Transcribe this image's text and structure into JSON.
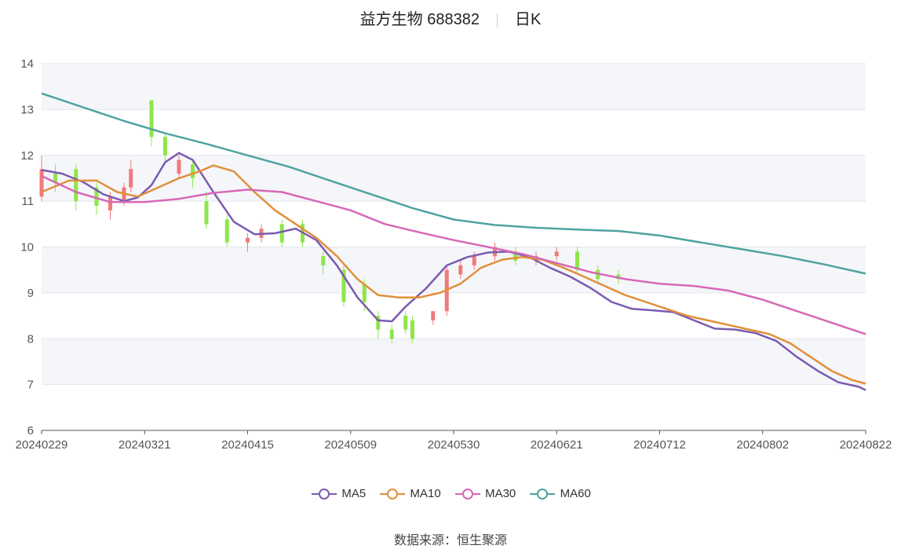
{
  "header": {
    "stock": "益方生物 688382",
    "period": "日K"
  },
  "source": {
    "label": "数据来源：",
    "value": "恒生聚源"
  },
  "colors": {
    "up": "#f07a7a",
    "down": "#8ee64a",
    "ma5": "#7b5bb0",
    "ma10": "#e0903a",
    "ma30": "#d768b8",
    "ma60": "#4fa3a0",
    "band": "#f5f6fa",
    "grid": "#e3e6ee"
  },
  "chart_data": {
    "type": "candlestick",
    "ylim": [
      6,
      14
    ],
    "yticks": [
      6,
      7,
      8,
      9,
      10,
      11,
      12,
      13,
      14
    ],
    "x_tick_labels": [
      "20240229",
      "20240321",
      "20240415",
      "20240509",
      "20240530",
      "20240621",
      "20240712",
      "20240802",
      "20240822"
    ],
    "x_tick_index": [
      0,
      15,
      30,
      45,
      60,
      75,
      90,
      105,
      120
    ],
    "n": 121,
    "candles": [
      [
        0,
        11.1,
        11.7,
        12.0,
        11.0
      ],
      [
        2,
        11.6,
        11.4,
        11.8,
        11.2
      ],
      [
        5,
        11.7,
        11.0,
        11.8,
        10.8
      ],
      [
        8,
        11.3,
        10.9,
        11.4,
        10.7
      ],
      [
        10,
        10.8,
        11.1,
        11.2,
        10.6
      ],
      [
        12,
        11.0,
        11.3,
        11.4,
        10.9
      ],
      [
        13,
        11.3,
        11.7,
        11.9,
        11.2
      ],
      [
        16,
        13.2,
        12.4,
        13.2,
        12.2
      ],
      [
        18,
        12.4,
        12.0,
        12.5,
        11.8
      ],
      [
        20,
        11.6,
        11.9,
        12.0,
        11.5
      ],
      [
        22,
        11.8,
        11.5,
        11.9,
        11.3
      ],
      [
        24,
        11.0,
        10.5,
        11.2,
        10.4
      ],
      [
        27,
        10.6,
        10.1,
        10.7,
        10.0
      ],
      [
        30,
        10.1,
        10.2,
        10.3,
        9.9
      ],
      [
        32,
        10.2,
        10.4,
        10.5,
        10.1
      ],
      [
        35,
        10.5,
        10.1,
        10.6,
        10.0
      ],
      [
        38,
        10.5,
        10.1,
        10.6,
        10.0
      ],
      [
        41,
        9.8,
        9.6,
        9.9,
        9.4
      ],
      [
        44,
        9.5,
        8.8,
        9.6,
        8.7
      ],
      [
        47,
        9.2,
        8.8,
        9.3,
        8.6
      ],
      [
        49,
        8.5,
        8.2,
        8.6,
        8.0
      ],
      [
        51,
        8.2,
        8.0,
        8.3,
        7.9
      ],
      [
        53,
        8.5,
        8.2,
        8.6,
        8.1
      ],
      [
        54,
        8.4,
        8.0,
        8.5,
        7.9
      ],
      [
        57,
        8.4,
        8.6,
        8.6,
        8.3
      ],
      [
        59,
        8.6,
        9.5,
        9.6,
        8.5
      ],
      [
        61,
        9.4,
        9.6,
        9.7,
        9.3
      ],
      [
        63,
        9.6,
        9.8,
        9.9,
        9.5
      ],
      [
        66,
        9.8,
        10.0,
        10.1,
        9.7
      ],
      [
        69,
        9.9,
        9.7,
        10.0,
        9.6
      ],
      [
        72,
        9.7,
        9.8,
        9.9,
        9.6
      ],
      [
        75,
        9.8,
        9.9,
        10.0,
        9.7
      ],
      [
        78,
        9.9,
        9.5,
        10.0,
        9.4
      ],
      [
        81,
        9.5,
        9.3,
        9.6,
        9.2
      ],
      [
        84,
        9.4,
        9.3,
        9.5,
        9.2
      ]
    ],
    "series": [
      {
        "name": "MA5",
        "color_key": "ma5",
        "points": [
          [
            0,
            11.68
          ],
          [
            3,
            11.6
          ],
          [
            6,
            11.42
          ],
          [
            9,
            11.15
          ],
          [
            12,
            11.0
          ],
          [
            14,
            11.08
          ],
          [
            16,
            11.35
          ],
          [
            18,
            11.85
          ],
          [
            20,
            12.05
          ],
          [
            22,
            11.9
          ],
          [
            25,
            11.2
          ],
          [
            28,
            10.55
          ],
          [
            31,
            10.28
          ],
          [
            34,
            10.3
          ],
          [
            37,
            10.4
          ],
          [
            40,
            10.15
          ],
          [
            43,
            9.6
          ],
          [
            46,
            8.9
          ],
          [
            49,
            8.4
          ],
          [
            51,
            8.38
          ],
          [
            53,
            8.7
          ],
          [
            56,
            9.1
          ],
          [
            59,
            9.6
          ],
          [
            62,
            9.78
          ],
          [
            65,
            9.88
          ],
          [
            68,
            9.9
          ],
          [
            71,
            9.78
          ],
          [
            74,
            9.55
          ],
          [
            77,
            9.35
          ],
          [
            80,
            9.1
          ],
          [
            83,
            8.8
          ],
          [
            86,
            8.65
          ],
          [
            89,
            8.62
          ],
          [
            92,
            8.58
          ],
          [
            95,
            8.4
          ],
          [
            98,
            8.22
          ],
          [
            101,
            8.2
          ],
          [
            104,
            8.12
          ],
          [
            107,
            7.95
          ],
          [
            110,
            7.6
          ],
          [
            113,
            7.3
          ],
          [
            116,
            7.05
          ],
          [
            119,
            6.95
          ],
          [
            120,
            6.88
          ]
        ]
      },
      {
        "name": "MA10",
        "color_key": "ma10",
        "points": [
          [
            0,
            11.2
          ],
          [
            4,
            11.45
          ],
          [
            8,
            11.45
          ],
          [
            11,
            11.2
          ],
          [
            14,
            11.1
          ],
          [
            17,
            11.3
          ],
          [
            20,
            11.5
          ],
          [
            23,
            11.65
          ],
          [
            25,
            11.78
          ],
          [
            28,
            11.65
          ],
          [
            31,
            11.2
          ],
          [
            34,
            10.8
          ],
          [
            37,
            10.5
          ],
          [
            40,
            10.2
          ],
          [
            43,
            9.8
          ],
          [
            46,
            9.3
          ],
          [
            49,
            8.95
          ],
          [
            52,
            8.9
          ],
          [
            55,
            8.9
          ],
          [
            58,
            9.0
          ],
          [
            61,
            9.2
          ],
          [
            64,
            9.55
          ],
          [
            67,
            9.72
          ],
          [
            70,
            9.78
          ],
          [
            73,
            9.72
          ],
          [
            76,
            9.55
          ],
          [
            79,
            9.35
          ],
          [
            82,
            9.15
          ],
          [
            85,
            8.95
          ],
          [
            88,
            8.8
          ],
          [
            91,
            8.65
          ],
          [
            94,
            8.5
          ],
          [
            97,
            8.4
          ],
          [
            100,
            8.3
          ],
          [
            103,
            8.2
          ],
          [
            106,
            8.1
          ],
          [
            109,
            7.9
          ],
          [
            112,
            7.6
          ],
          [
            115,
            7.3
          ],
          [
            118,
            7.1
          ],
          [
            120,
            7.02
          ]
        ]
      },
      {
        "name": "MA30",
        "color_key": "ma30",
        "points": [
          [
            0,
            11.55
          ],
          [
            5,
            11.2
          ],
          [
            10,
            10.98
          ],
          [
            15,
            10.98
          ],
          [
            20,
            11.05
          ],
          [
            25,
            11.18
          ],
          [
            30,
            11.25
          ],
          [
            35,
            11.2
          ],
          [
            40,
            11.0
          ],
          [
            45,
            10.8
          ],
          [
            50,
            10.5
          ],
          [
            55,
            10.32
          ],
          [
            60,
            10.15
          ],
          [
            65,
            10.0
          ],
          [
            70,
            9.85
          ],
          [
            75,
            9.65
          ],
          [
            80,
            9.45
          ],
          [
            85,
            9.3
          ],
          [
            90,
            9.2
          ],
          [
            95,
            9.15
          ],
          [
            100,
            9.05
          ],
          [
            105,
            8.85
          ],
          [
            110,
            8.6
          ],
          [
            115,
            8.35
          ],
          [
            120,
            8.1
          ]
        ]
      },
      {
        "name": "MA60",
        "color_key": "ma60",
        "points": [
          [
            0,
            13.35
          ],
          [
            6,
            13.05
          ],
          [
            12,
            12.75
          ],
          [
            18,
            12.48
          ],
          [
            24,
            12.25
          ],
          [
            30,
            12.0
          ],
          [
            36,
            11.75
          ],
          [
            42,
            11.45
          ],
          [
            48,
            11.15
          ],
          [
            54,
            10.85
          ],
          [
            60,
            10.6
          ],
          [
            66,
            10.48
          ],
          [
            72,
            10.42
          ],
          [
            78,
            10.38
          ],
          [
            84,
            10.35
          ],
          [
            90,
            10.25
          ],
          [
            96,
            10.1
          ],
          [
            102,
            9.95
          ],
          [
            108,
            9.8
          ],
          [
            114,
            9.62
          ],
          [
            120,
            9.42
          ]
        ]
      }
    ],
    "legend": [
      "MA5",
      "MA10",
      "MA30",
      "MA60"
    ]
  }
}
